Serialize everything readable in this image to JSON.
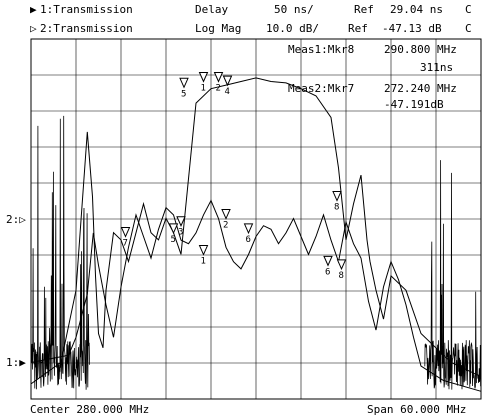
{
  "header": {
    "ch1": {
      "arrow": "▶",
      "label": "1:Transmission",
      "format": "Delay",
      "scale": "50 ns/",
      "ref_label": "Ref",
      "ref_value": "29.04 ns",
      "flag": "C"
    },
    "ch2": {
      "arrow": "▷",
      "label": "2:Transmission",
      "format": "Log Mag",
      "scale": "10.0 dB/",
      "ref_label": "Ref",
      "ref_value": "-47.13 dB",
      "flag": "C"
    }
  },
  "readouts": {
    "meas1_label": "Meas1:Mkr8",
    "meas1_value": "290.800 MHz",
    "meas1_sub": "311ns",
    "meas2_label": "Meas2:Mkr7",
    "meas2_value": "272.240 MHz",
    "meas2_sub": "-47.191dB"
  },
  "ref_markers": {
    "ch2": "2:▷",
    "ch1": "1:▶"
  },
  "footer": {
    "center": "Center 280.000 MHz",
    "span": "Span 60.000 MHz"
  },
  "colors": {
    "trace": "#000000",
    "grid": "#000000",
    "background": "#ffffff"
  },
  "chart_data": {
    "type": "line",
    "grid": true,
    "divisions_x": 10,
    "divisions_y": 10,
    "x_center_MHz": 280.0,
    "x_span_MHz": 60.0,
    "series": [
      {
        "name": "2:Transmission",
        "format": "Log Mag",
        "scale_per_div": 10.0,
        "ref_value_dB": -47.13,
        "ref_position_div": 5,
        "x": [
          250,
          255,
          256,
          257.5,
          258.3,
          259,
          260,
          261,
          262,
          263,
          264,
          265,
          266,
          267,
          268,
          269,
          270,
          271,
          272,
          273,
          274,
          275,
          276,
          277,
          278,
          279,
          280,
          281,
          282,
          283,
          284,
          285,
          286,
          287,
          288,
          289,
          290,
          291,
          292,
          293,
          294,
          295,
          296,
          297,
          298,
          299,
          300,
          301,
          302,
          305,
          310
        ],
        "y": [
          -87,
          -85,
          -80,
          -68,
          -51,
          -60,
          -71,
          -80,
          -66,
          -55,
          -46,
          -52,
          -58,
          -50,
          -44,
          -46,
          -53,
          -54,
          -51,
          -46,
          -42,
          -47,
          -55,
          -59,
          -61,
          -57,
          -52,
          -49,
          -50,
          -54,
          -51,
          -47,
          -52,
          -57,
          -52,
          -46,
          -53,
          -59,
          -48,
          -54,
          -58,
          -70,
          -78,
          -66,
          -59,
          -64,
          -71,
          -80,
          -88,
          -92,
          -95
        ]
      },
      {
        "name": "1:Transmission",
        "format": "Delay",
        "scale_per_div": 50,
        "ref_value_ns": 29.04,
        "ref_position_div": 0,
        "x": [
          250,
          254,
          256,
          257.5,
          258.2,
          258.6,
          259,
          259.6,
          260,
          261,
          262,
          263,
          264,
          265,
          266,
          267,
          268,
          269,
          270,
          272,
          274,
          276,
          278,
          280,
          282,
          284,
          286,
          288,
          290,
          291,
          292,
          293,
          294,
          294.8,
          295.2,
          296,
          297,
          298,
          300,
          302,
          306,
          310
        ],
        "y": [
          50,
          80,
          180,
          400,
          310,
          200,
          120,
          100,
          180,
          260,
          250,
          220,
          260,
          300,
          260,
          250,
          280,
          260,
          230,
          440,
          460,
          465,
          470,
          475,
          470,
          468,
          460,
          450,
          420,
          350,
          250,
          300,
          340,
          250,
          220,
          180,
          140,
          200,
          180,
          120,
          80,
          60
        ]
      }
    ],
    "markers": [
      {
        "id": "1",
        "trace": "1:Transmission",
        "label": "1"
      },
      {
        "id": "2",
        "trace": "1:Transmission",
        "label": "2"
      },
      {
        "id": "3",
        "trace": "1:Transmission",
        "label": "3"
      },
      {
        "id": "4",
        "trace": "1:Transmission",
        "label": "4"
      },
      {
        "id": "5",
        "trace": "1:Transmission",
        "label": "5"
      },
      {
        "id": "1b",
        "trace": "2:Transmission",
        "label": "1"
      },
      {
        "id": "2b",
        "trace": "2:Transmission",
        "label": "2"
      },
      {
        "id": "3b",
        "trace": "2:Transmission",
        "label": "3"
      },
      {
        "id": "5b",
        "trace": "2:Transmission",
        "label": "5"
      },
      {
        "id": "6",
        "trace": "2:Transmission",
        "label": "6"
      },
      {
        "id": "7",
        "trace": "2:Transmission",
        "label": "7"
      },
      {
        "id": "8",
        "trace": "2:Transmission",
        "label": "8"
      },
      {
        "id": "8b",
        "trace": "2:Transmission",
        "label": "8"
      },
      {
        "id": "6b",
        "trace": "2:Transmission",
        "label": "6"
      }
    ]
  }
}
